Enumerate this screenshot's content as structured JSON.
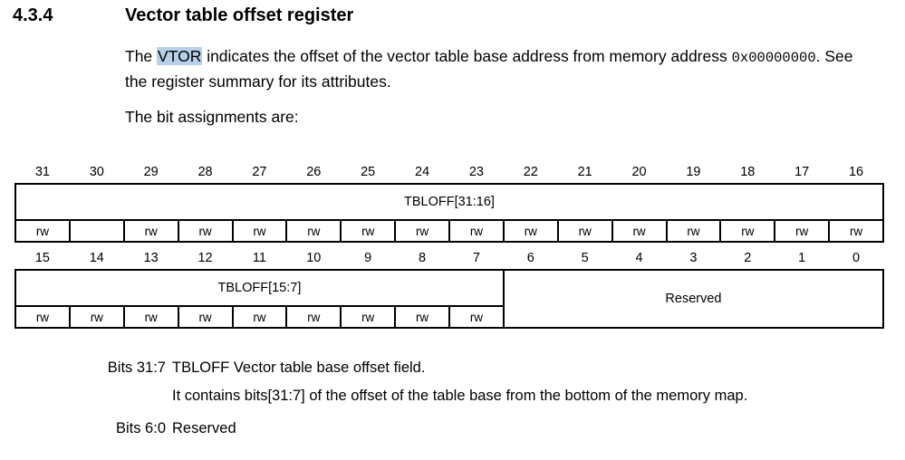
{
  "page": {
    "section_number": "4.3.4",
    "title": "Vector table offset register"
  },
  "intro": {
    "sentence_start": "The ",
    "vtor_link": "VTOR",
    "sentence_mid": " indicates the offset of the vector table base address from memory address ",
    "address_code": "0x00000000",
    "sentence_end": ". See the register summary for its attributes.",
    "bit_assignments_line": "The bit assignments are:"
  },
  "register_diagram": {
    "high_word": {
      "bit_labels": [
        "31",
        "30",
        "29",
        "28",
        "27",
        "26",
        "25",
        "24",
        "23",
        "22",
        "21",
        "20",
        "19",
        "18",
        "17",
        "16"
      ],
      "field_label": "TBLOFF[31:16]",
      "access": [
        "rw",
        "",
        "rw",
        "rw",
        "rw",
        "rw",
        "rw",
        "rw",
        "rw",
        "rw",
        "rw",
        "rw",
        "rw",
        "rw",
        "rw",
        "rw"
      ]
    },
    "low_word": {
      "bit_labels": [
        "15",
        "14",
        "13",
        "12",
        "11",
        "10",
        "9",
        "8",
        "7",
        "6",
        "5",
        "4",
        "3",
        "2",
        "1",
        "0"
      ],
      "tbloff_field_label": "TBLOFF[15:7]",
      "reserved_field_label": "Reserved",
      "access": [
        "rw",
        "rw",
        "rw",
        "rw",
        "rw",
        "rw",
        "rw",
        "rw",
        "rw"
      ]
    }
  },
  "notes": [
    {
      "label": "Bits 31:7",
      "line1": "TBLOFF Vector table base offset field.",
      "line2": "It contains bits[31:7] of the offset of the table base from the bottom of the memory map."
    },
    {
      "label": "Bits 6:0",
      "line1": "Reserved"
    }
  ],
  "colors": {
    "link_highlight": "#b8d1e8",
    "text": "#000000",
    "table_border": "#000000"
  }
}
